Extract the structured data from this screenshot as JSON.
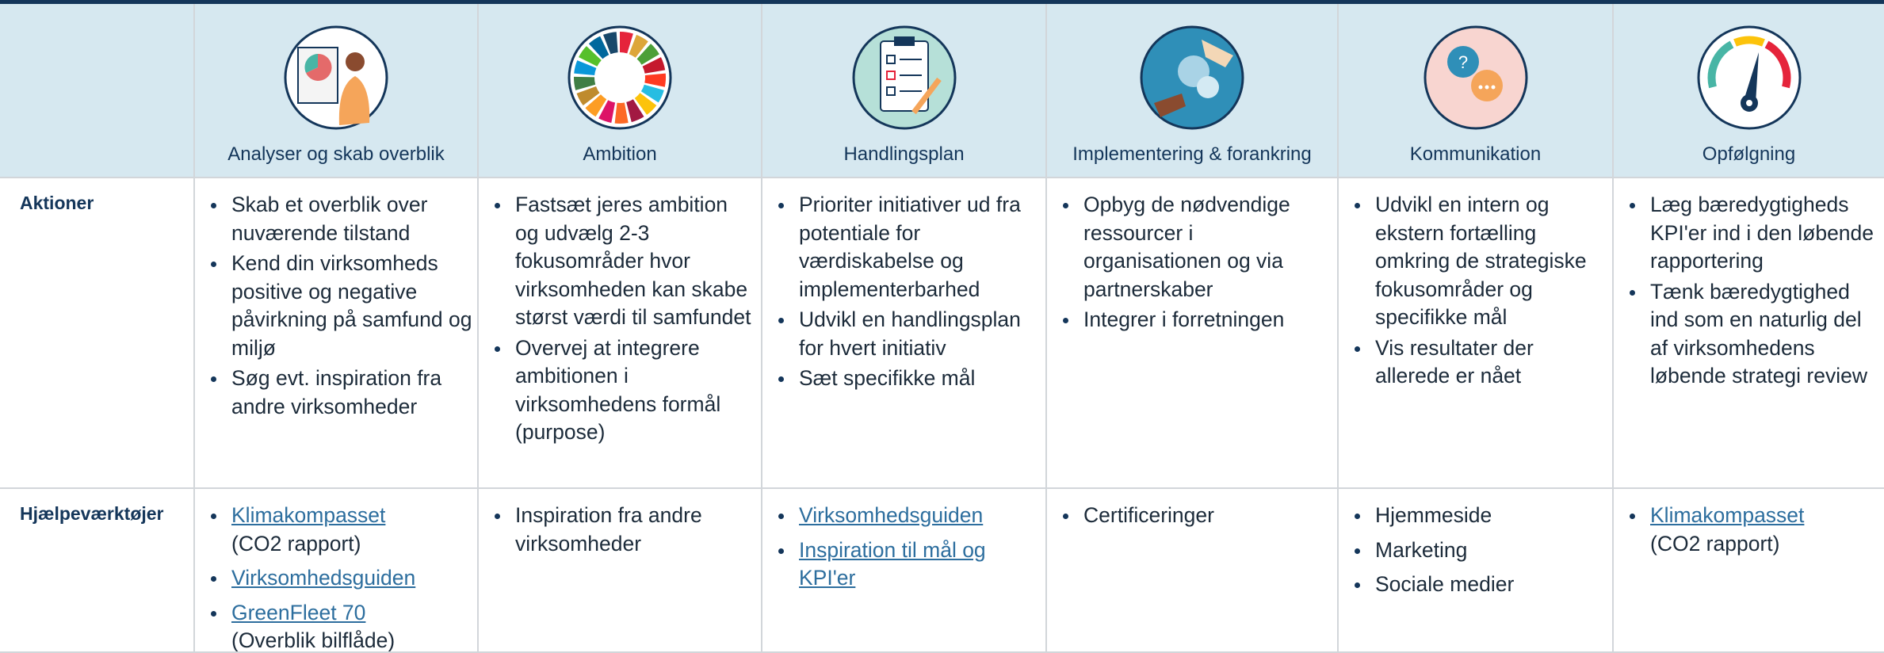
{
  "columns": [
    "Analyser og skab overblik",
    "Ambition",
    "Handlingsplan",
    "Implementering & forankring",
    "Kommunikation",
    "Opfølgning"
  ],
  "rows": [
    {
      "label": "Aktioner",
      "cells": [
        [
          "Skab et overblik over nuværende tilstand",
          "Kend din virksomheds positive og negative påvirkning på samfund og miljø",
          "Søg evt. inspiration fra andre virksomheder"
        ],
        [
          "Fastsæt jeres ambition og udvælg 2-3 fokusområder hvor virksomheden kan skabe størst værdi til samfundet",
          "Overvej at integrere ambitionen i virksomhedens formål (purpose)"
        ],
        [
          "Prioriter initiativer ud fra potentiale for værdiskabelse og implementerbarhed",
          "Udvikl en handlingsplan for hvert initiativ",
          "Sæt specifikke mål"
        ],
        [
          "Opbyg de nødvendige ressourcer i organisationen og via partnerskaber",
          "Integrer i forretningen"
        ],
        [
          "Udvikl en intern og ekstern fortælling omkring de strategiske fokusområder og specifikke mål",
          "Vis resultater der allerede er nået"
        ],
        [
          "Læg bæredygtigheds KPI'er ind i den løbende rapportering",
          "Tænk bæredygtighed ind som en naturlig del af virksomhedens løbende strategi review"
        ]
      ]
    },
    {
      "label": "Hjælpeværktøjer",
      "cells": [
        [
          {
            "link": "Klimakompasset",
            "note": "(CO2 rapport)"
          },
          {
            "link": "Virksomhedsguiden"
          },
          {
            "link": "GreenFleet 70",
            "note": "(Overblik bilflåde)"
          }
        ],
        [
          {
            "text": "Inspiration fra andre virksomheder"
          }
        ],
        [
          {
            "link": "Virksomhedsguiden"
          },
          {
            "link": "Inspiration til mål og KPI'er"
          }
        ],
        [
          {
            "text": "Certificeringer"
          }
        ],
        [
          {
            "text": "Hjemmeside"
          },
          {
            "text": "Marketing"
          },
          {
            "text": "Sociale medier"
          }
        ],
        [
          {
            "link": "Klimakompasset",
            "note": "(CO2 rapport)"
          }
        ]
      ]
    }
  ]
}
